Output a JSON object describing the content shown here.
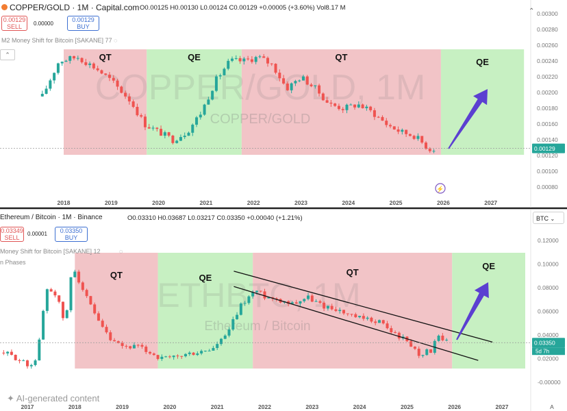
{
  "top": {
    "header": {
      "symbol_line": "COPPER/GOLD · 1M · Capital.com",
      "ohlc": "O0.00125 H0.00130 L0.00124 C0.00129 +0.00005 (+3.60%) Vol8.17 M",
      "sell_price": "0.00129",
      "sell_label": "SELL",
      "spread": "0.00000",
      "buy_price": "0.00129",
      "buy_label": "BUY",
      "indicator": "M2 Money Shift for Bitcoin [SAKANE] 77"
    },
    "watermark_big": "COPPER/GOLD, 1M",
    "watermark_small": "COPPER/GOLD",
    "price_label": "0.00129"
  },
  "bottom": {
    "header": {
      "symbol_line": "Ethereum / Bitcoin · 1M · Binance",
      "ohlc": "O0.03310 H0.03687 L0.03217 C0.03350 +0.00040 (+1.21%)",
      "sell_price": "0.03349",
      "sell_label": "SELL",
      "spread": "0.00001",
      "buy_price": "0.03350",
      "buy_label": "BUY",
      "indicator": "Money Shift for Bitcoin [SAKANE] 12",
      "indicator2": "n Phases",
      "currency_button": "BTC"
    },
    "watermark_big": "ETHBTC, 1M",
    "watermark_small": "Ethereum / Bitcoin",
    "price_label": "0.03350",
    "countdown": "5d 7h"
  },
  "footer": {
    "ai_label": "AI-generated content",
    "axis_a": "A"
  },
  "chart_data": [
    {
      "type": "candlestick",
      "title": "COPPER/GOLD · 1M · Capital.com",
      "x_ticks": [
        "2018",
        "2019",
        "2020",
        "2021",
        "2022",
        "2023",
        "2024",
        "2025",
        "2026",
        "2027"
      ],
      "y_ticks": [
        "0.00300",
        "0.00280",
        "0.00260",
        "0.00240",
        "0.00220",
        "0.00200",
        "0.00180",
        "0.00160",
        "0.00140",
        "0.00120",
        "0.00100",
        "0.00080"
      ],
      "ylim": [
        0.0007,
        0.0031
      ],
      "regions": [
        {
          "label": "QT",
          "from": 2018.0,
          "to": 2019.75,
          "color": "#f2c4c7"
        },
        {
          "label": "QE",
          "from": 2019.75,
          "to": 2021.75,
          "color": "#c7f0c2"
        },
        {
          "label": "QT",
          "from": 2021.75,
          "to": 2025.95,
          "color": "#f2c4c7"
        },
        {
          "label": "QE",
          "from": 2025.95,
          "to": 2027.7,
          "color": "#c7f0c2"
        }
      ],
      "anchors": [
        [
          2017.55,
          0.00195
        ],
        [
          2017.9,
          0.0024
        ],
        [
          2018.3,
          0.00245
        ],
        [
          2018.7,
          0.0023
        ],
        [
          2019.0,
          0.00215
        ],
        [
          2019.4,
          0.0019
        ],
        [
          2019.7,
          0.0016
        ],
        [
          2020.0,
          0.0015
        ],
        [
          2020.3,
          0.0014
        ],
        [
          2020.6,
          0.0015
        ],
        [
          2020.9,
          0.00175
        ],
        [
          2021.2,
          0.00215
        ],
        [
          2021.5,
          0.0024
        ],
        [
          2021.8,
          0.0024
        ],
        [
          2022.1,
          0.00245
        ],
        [
          2022.4,
          0.00235
        ],
        [
          2022.7,
          0.00205
        ],
        [
          2023.0,
          0.0022
        ],
        [
          2023.3,
          0.00205
        ],
        [
          2023.6,
          0.00185
        ],
        [
          2023.9,
          0.0018
        ],
        [
          2024.2,
          0.00185
        ],
        [
          2024.5,
          0.00175
        ],
        [
          2024.8,
          0.0016
        ],
        [
          2025.1,
          0.0015
        ],
        [
          2025.4,
          0.00145
        ],
        [
          2025.7,
          0.00128
        ],
        [
          2025.85,
          0.00129
        ]
      ],
      "last_price": 0.00129
    },
    {
      "type": "candlestick",
      "title": "Ethereum / Bitcoin · 1M · Binance",
      "x_ticks": [
        "2017",
        "2018",
        "2019",
        "2020",
        "2021",
        "2022",
        "2023",
        "2024",
        "2025",
        "2026",
        "2027"
      ],
      "y_ticks": [
        "0.12000",
        "0.10000",
        "0.08000",
        "0.06000",
        "0.04000",
        "0.02000",
        "-0.00000"
      ],
      "ylim": [
        -0.004,
        0.125
      ],
      "regions": [
        {
          "label": "QT",
          "from": 2018.0,
          "to": 2019.75,
          "color": "#f2c4c7"
        },
        {
          "label": "QE",
          "from": 2019.75,
          "to": 2021.75,
          "color": "#c7f0c2"
        },
        {
          "label": "QT",
          "from": 2021.75,
          "to": 2025.95,
          "color": "#f2c4c7"
        },
        {
          "label": "QE",
          "from": 2025.95,
          "to": 2027.7,
          "color": "#c7f0c2"
        }
      ],
      "trend_lines": [
        {
          "from": [
            2021.35,
            0.094
          ],
          "to": [
            2026.8,
            0.034
          ]
        },
        {
          "from": [
            2021.35,
            0.081
          ],
          "to": [
            2026.5,
            0.0185
          ]
        }
      ],
      "anchors": [
        [
          2016.5,
          0.025
        ],
        [
          2016.8,
          0.02
        ],
        [
          2017.0,
          0.014
        ],
        [
          2017.2,
          0.02
        ],
        [
          2017.4,
          0.08
        ],
        [
          2017.6,
          0.075
        ],
        [
          2017.8,
          0.048
        ],
        [
          2017.95,
          0.1
        ],
        [
          2018.2,
          0.075
        ],
        [
          2018.5,
          0.05
        ],
        [
          2018.8,
          0.033
        ],
        [
          2019.0,
          0.03
        ],
        [
          2019.3,
          0.03
        ],
        [
          2019.6,
          0.025
        ],
        [
          2019.8,
          0.02
        ],
        [
          2020.0,
          0.02
        ],
        [
          2020.3,
          0.023
        ],
        [
          2020.6,
          0.025
        ],
        [
          2020.9,
          0.028
        ],
        [
          2021.2,
          0.04
        ],
        [
          2021.5,
          0.065
        ],
        [
          2021.8,
          0.078
        ],
        [
          2022.0,
          0.073
        ],
        [
          2022.3,
          0.07
        ],
        [
          2022.6,
          0.067
        ],
        [
          2022.9,
          0.072
        ],
        [
          2023.2,
          0.065
        ],
        [
          2023.5,
          0.062
        ],
        [
          2023.8,
          0.056
        ],
        [
          2024.1,
          0.053
        ],
        [
          2024.4,
          0.052
        ],
        [
          2024.7,
          0.042
        ],
        [
          2025.0,
          0.035
        ],
        [
          2025.25,
          0.024
        ],
        [
          2025.5,
          0.027
        ],
        [
          2025.65,
          0.038
        ],
        [
          2025.85,
          0.0335
        ]
      ],
      "last_price": 0.0335
    }
  ]
}
